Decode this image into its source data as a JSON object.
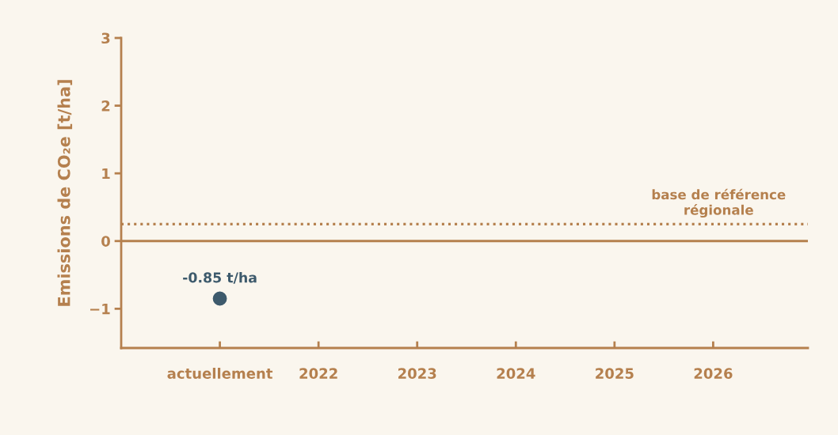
{
  "chart_data": {
    "type": "scatter",
    "ylabel": "Emissions de CO₂e [t/ha]",
    "categories": [
      "actuellement",
      "2022",
      "2023",
      "2024",
      "2025",
      "2026"
    ],
    "series": [
      {
        "color": "#3d5a6c",
        "values": [
          -0.85,
          null,
          null,
          null,
          null,
          null
        ]
      }
    ],
    "marker": "circle",
    "value_labels": [
      "-0.85 t/ha",
      null,
      null,
      null,
      null,
      null
    ],
    "ylim": [
      -1.58,
      3
    ],
    "yticks": [
      3,
      2,
      1,
      0,
      {
        "value": -1,
        "label": "−1"
      }
    ],
    "ref_lines": [
      {
        "axis": "y",
        "value": 0,
        "label": null,
        "color": "#b5804e",
        "line_style": "solid"
      },
      {
        "axis": "y",
        "value": 0.25,
        "label": "base de référence\nrégionale",
        "color": "#b5804e",
        "line_style": "dotted"
      }
    ],
    "grid": false,
    "legend": false
  }
}
